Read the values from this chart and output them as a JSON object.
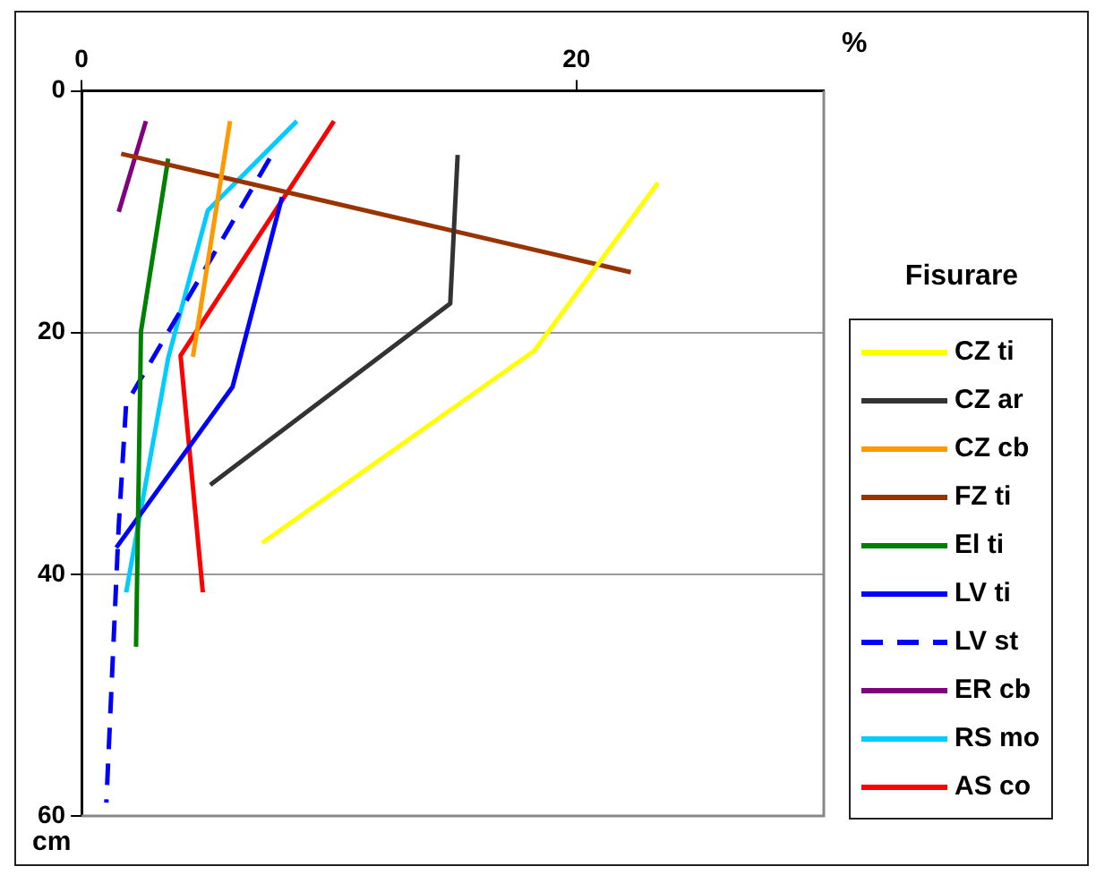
{
  "chart_data": {
    "type": "line",
    "xlabel": "%",
    "ylabel": "cm",
    "legend_title": "Fisurare",
    "xlim": [
      0,
      30
    ],
    "xticks": [
      0,
      20
    ],
    "ylim": [
      60,
      0
    ],
    "yticks": [
      0,
      20,
      40,
      60
    ],
    "grid": "y",
    "legend": "right",
    "marker": "none",
    "line_style": "solid",
    "series": [
      {
        "name": "CZ ti",
        "color": "#ffff00",
        "x": [
          23.3,
          18.3,
          7.3
        ],
        "values": [
          7.6,
          21.5,
          37.4
        ]
      },
      {
        "name": "CZ ar",
        "color": "#333333",
        "x": [
          15.2,
          14.9,
          5.2
        ],
        "values": [
          5.3,
          17.6,
          32.6
        ]
      },
      {
        "name": "CZ cb",
        "color": "#ff9900",
        "x": [
          6.0,
          4.5
        ],
        "values": [
          2.5,
          22.0
        ]
      },
      {
        "name": "FZ ti",
        "color": "#993300",
        "x": [
          1.6,
          22.2
        ],
        "values": [
          5.2,
          15.0
        ]
      },
      {
        "name": "El ti",
        "color": "#008000",
        "x": [
          3.5,
          2.4,
          2.2
        ],
        "values": [
          5.6,
          19.9,
          46.0
        ]
      },
      {
        "name": "LV ti",
        "color": "#0000ff",
        "x": [
          8.1,
          6.1,
          1.4
        ],
        "values": [
          8.8,
          24.5,
          37.8
        ]
      },
      {
        "name": "LV st",
        "color": "#0000ff",
        "line_style": "dashed",
        "x": [
          7.6,
          1.8,
          1.5,
          1.0
        ],
        "values": [
          5.6,
          25.9,
          36.0,
          58.9
        ]
      },
      {
        "name": "ER cb",
        "color": "#800080",
        "x": [
          2.6,
          1.5
        ],
        "values": [
          2.5,
          10.0
        ]
      },
      {
        "name": "RS mo",
        "color": "#00ccff",
        "x": [
          8.7,
          5.1,
          3.5,
          1.8
        ],
        "values": [
          2.5,
          9.9,
          22.1,
          41.5
        ]
      },
      {
        "name": "AS co",
        "color": "#ff0000",
        "x": [
          10.2,
          4.0,
          4.9
        ],
        "values": [
          2.5,
          21.9,
          41.5
        ]
      }
    ]
  }
}
